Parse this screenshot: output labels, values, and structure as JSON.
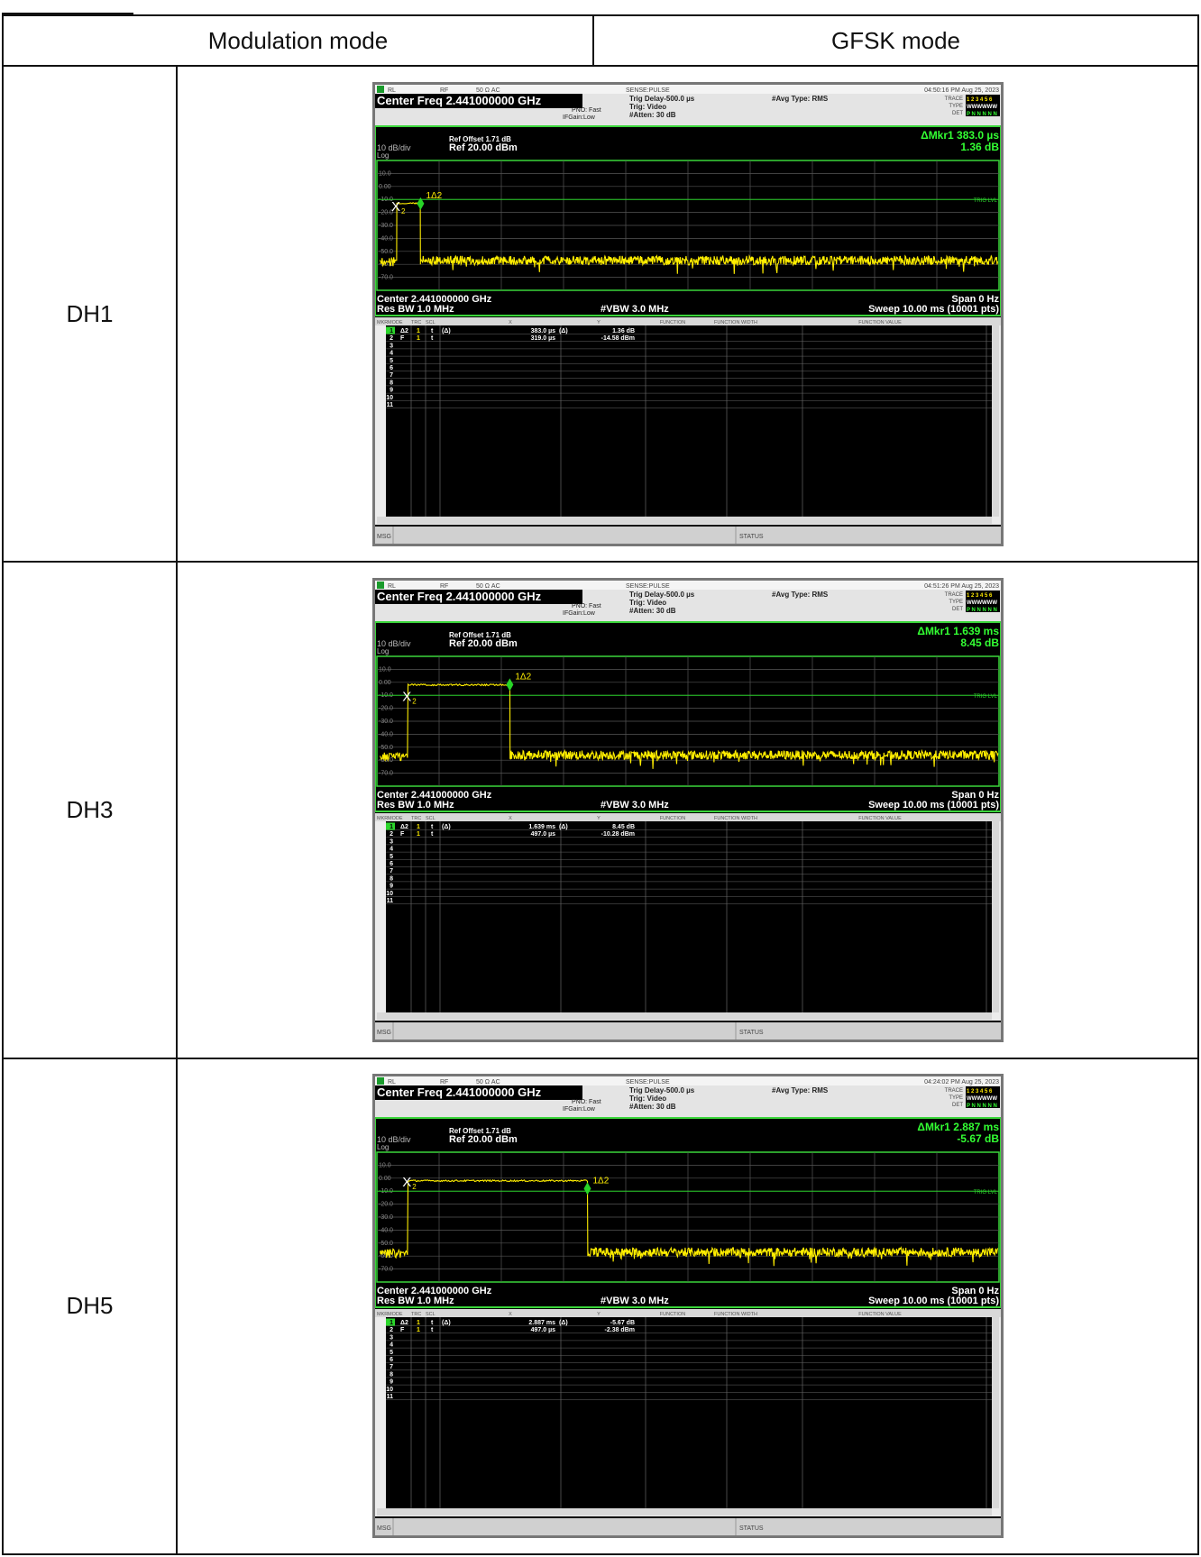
{
  "table": {
    "headers": [
      "Modulation mode",
      "GFSK mode"
    ],
    "rows": [
      {
        "label": "DH1",
        "analyzer": {
          "status_bar": {
            "rl": "RL",
            "rf": "RF",
            "impedance": "50 Ω",
            "coupling": "AC",
            "sense": "SENSE:PULSE",
            "timestamp": "04:50:16 PM Aug 25, 2023"
          },
          "center_freq": "Center Freq 2.441000000 GHz",
          "pno": "PNO: Fast",
          "ifgain": "IFGain:Low",
          "trig_delay": "Trig Delay-500.0 µs",
          "trig": "Trig: Video",
          "atten": "#Atten: 30 dB",
          "avg_type": "#Avg Type: RMS",
          "trace_labels": {
            "trace": "TRACE",
            "type": "TYPE",
            "det": "DET",
            "trace_value": "1 2 3 4 5 6",
            "type_value": "WWWWWW",
            "det_value": "P N N N N N"
          },
          "ref_offset": "Ref Offset 1.71 dB",
          "scale": "10 dB/div",
          "ref_level": "Ref 20.00 dBm",
          "log_label": "Log",
          "delta_marker": "ΔMkr1 383.0 µs",
          "delta_value": "1.36 dB",
          "y_ticks": [
            "10.0",
            "0.00",
            "-10.0",
            "-20.0",
            "-30.0",
            "-40.0",
            "-50.0",
            "-60.0",
            "-70.0"
          ],
          "trig_lvl": "TRIG LVL",
          "marker_label": "1Δ2",
          "x_marker_label": "X",
          "x_marker_sub": "2",
          "center_bottom": "Center 2.441000000 GHz",
          "span": "Span 0 Hz",
          "res_bw": "Res BW 1.0 MHz",
          "vbw": "#VBW 3.0 MHz",
          "sweep": "Sweep  10.00 ms (10001 pts)",
          "table_headers": [
            "MKR",
            "MODE",
            "TRC",
            "SCL",
            "X",
            "Y",
            "FUNCTION",
            "FUNCTION WIDTH",
            "FUNCTION VALUE"
          ],
          "marker_rows": [
            [
              "1",
              "Δ2",
              "1",
              "t",
              "(Δ)",
              "383.0 µs",
              "(Δ)",
              "1.36 dB"
            ],
            [
              "2",
              "F",
              "1",
              "t",
              "",
              "319.0 µs",
              "",
              "-14.58 dBm"
            ]
          ],
          "row_numbers": [
            "1",
            "2",
            "3",
            "4",
            "5",
            "6",
            "7",
            "8",
            "9",
            "10",
            "11"
          ],
          "msg": "MSG",
          "status": "STATUS"
        },
        "chart_data": {
          "type": "line",
          "xlabel": "",
          "ylabel": "",
          "ylim": [
            -80,
            20
          ],
          "reference_level_dBm": 20,
          "scale_dB_per_div": 10,
          "sweep_time_ms": 10.0,
          "trigger_level_dBm": -10,
          "series": [
            {
              "name": "",
              "burst_start_ms": 0.32,
              "burst_end_ms": 0.7,
              "burst_level_dBm": -13,
              "noise_floor_dBm": -58
            }
          ],
          "markers": {
            "delta_x_ms": 0.383,
            "delta_y_dB": 1.36,
            "ref_x_ms": 0.319,
            "ref_y_dBm": -14.58
          }
        }
      },
      {
        "label": "DH3",
        "analyzer": {
          "status_bar": {
            "rl": "RL",
            "rf": "RF",
            "impedance": "50 Ω",
            "coupling": "AC",
            "sense": "SENSE:PULSE",
            "timestamp": "04:51:26 PM Aug 25, 2023"
          },
          "center_freq": "Center Freq 2.441000000 GHz",
          "pno": "PNO: Fast",
          "ifgain": "IFGain:Low",
          "trig_delay": "Trig Delay-500.0 µs",
          "trig": "Trig: Video",
          "atten": "#Atten: 30 dB",
          "avg_type": "#Avg Type: RMS",
          "trace_labels": {
            "trace": "TRACE",
            "type": "TYPE",
            "det": "DET",
            "trace_value": "1 2 3 4 5 6",
            "type_value": "WWWWWW",
            "det_value": "P N N N N N"
          },
          "ref_offset": "Ref Offset 1.71 dB",
          "scale": "10 dB/div",
          "ref_level": "Ref 20.00 dBm",
          "log_label": "Log",
          "delta_marker": "ΔMkr1 1.639 ms",
          "delta_value": "8.45 dB",
          "y_ticks": [
            "10.0",
            "0.00",
            "-10.0",
            "-20.0",
            "-30.0",
            "-40.0",
            "-50.0",
            "-60.0",
            "-70.0"
          ],
          "trig_lvl": "TRIG LVL",
          "marker_label": "1Δ2",
          "x_marker_label": "X",
          "x_marker_sub": "2",
          "center_bottom": "Center 2.441000000 GHz",
          "span": "Span 0 Hz",
          "res_bw": "Res BW 1.0 MHz",
          "vbw": "#VBW 3.0 MHz",
          "sweep": "Sweep  10.00 ms (10001 pts)",
          "table_headers": [
            "MKR",
            "MODE",
            "TRC",
            "SCL",
            "X",
            "Y",
            "FUNCTION",
            "FUNCTION WIDTH",
            "FUNCTION VALUE"
          ],
          "marker_rows": [
            [
              "1",
              "Δ2",
              "1",
              "t",
              "(Δ)",
              "1.639 ms",
              "(Δ)",
              "8.45 dB"
            ],
            [
              "2",
              "F",
              "1",
              "t",
              "",
              "497.0 µs",
              "",
              "-10.28 dBm"
            ]
          ],
          "row_numbers": [
            "1",
            "2",
            "3",
            "4",
            "5",
            "6",
            "7",
            "8",
            "9",
            "10",
            "11"
          ],
          "msg": "MSG",
          "status": "STATUS"
        },
        "chart_data": {
          "type": "line",
          "xlabel": "",
          "ylabel": "",
          "ylim": [
            -80,
            20
          ],
          "reference_level_dBm": 20,
          "scale_dB_per_div": 10,
          "sweep_time_ms": 10.0,
          "trigger_level_dBm": -10,
          "series": [
            {
              "name": "",
              "burst_start_ms": 0.5,
              "burst_end_ms": 2.14,
              "burst_level_dBm": -2,
              "noise_floor_dBm": -57
            }
          ],
          "markers": {
            "delta_x_ms": 1.639,
            "delta_y_dB": 8.45,
            "ref_x_ms": 0.497,
            "ref_y_dBm": -10.28
          }
        }
      },
      {
        "label": "DH5",
        "analyzer": {
          "status_bar": {
            "rl": "RL",
            "rf": "RF",
            "impedance": "50 Ω",
            "coupling": "AC",
            "sense": "SENSE:PULSE",
            "timestamp": "04:24:02 PM Aug 25, 2023"
          },
          "center_freq": "Center Freq 2.441000000 GHz",
          "pno": "PNO: Fast",
          "ifgain": "IFGain:Low",
          "trig_delay": "Trig Delay-500.0 µs",
          "trig": "Trig: Video",
          "atten": "#Atten: 30 dB",
          "avg_type": "#Avg Type: RMS",
          "trace_labels": {
            "trace": "TRACE",
            "type": "TYPE",
            "det": "DET",
            "trace_value": "1 2 3 4 5 6",
            "type_value": "WWWWWW",
            "det_value": "P N N N N N"
          },
          "ref_offset": "Ref Offset 1.71 dB",
          "scale": "10 dB/div",
          "ref_level": "Ref 20.00 dBm",
          "log_label": "Log",
          "delta_marker": "ΔMkr1 2.887 ms",
          "delta_value": "-5.67 dB",
          "y_ticks": [
            "10.0",
            "0.00",
            "-10.0",
            "-20.0",
            "-30.0",
            "-40.0",
            "-50.0",
            "-60.0",
            "-70.0"
          ],
          "trig_lvl": "TRIG LVL",
          "marker_label": "1Δ2",
          "x_marker_label": "X",
          "x_marker_sub": "2",
          "center_bottom": "Center 2.441000000 GHz",
          "span": "Span 0 Hz",
          "res_bw": "Res BW 1.0 MHz",
          "vbw": "#VBW 3.0 MHz",
          "sweep": "Sweep  10.00 ms (10001 pts)",
          "table_headers": [
            "MKR",
            "MODE",
            "TRC",
            "SCL",
            "X",
            "Y",
            "FUNCTION",
            "FUNCTION WIDTH",
            "FUNCTION VALUE"
          ],
          "marker_rows": [
            [
              "1",
              "Δ2",
              "1",
              "t",
              "(Δ)",
              "2.887 ms",
              "(Δ)",
              "-5.67 dB"
            ],
            [
              "2",
              "F",
              "1",
              "t",
              "",
              "497.0 µs",
              "",
              "-2.38 dBm"
            ]
          ],
          "row_numbers": [
            "1",
            "2",
            "3",
            "4",
            "5",
            "6",
            "7",
            "8",
            "9",
            "10",
            "11"
          ],
          "msg": "MSG",
          "status": "STATUS"
        },
        "chart_data": {
          "type": "line",
          "xlabel": "",
          "ylabel": "",
          "ylim": [
            -80,
            20
          ],
          "reference_level_dBm": 20,
          "scale_dB_per_div": 10,
          "sweep_time_ms": 10.0,
          "trigger_level_dBm": -10,
          "series": [
            {
              "name": "",
              "burst_start_ms": 0.5,
              "burst_end_ms": 3.39,
              "burst_level_dBm": -2,
              "noise_floor_dBm": -58
            }
          ],
          "markers": {
            "delta_x_ms": 2.887,
            "delta_y_dB": -5.67,
            "ref_x_ms": 0.497,
            "ref_y_dBm": -2.38
          }
        }
      }
    ]
  }
}
